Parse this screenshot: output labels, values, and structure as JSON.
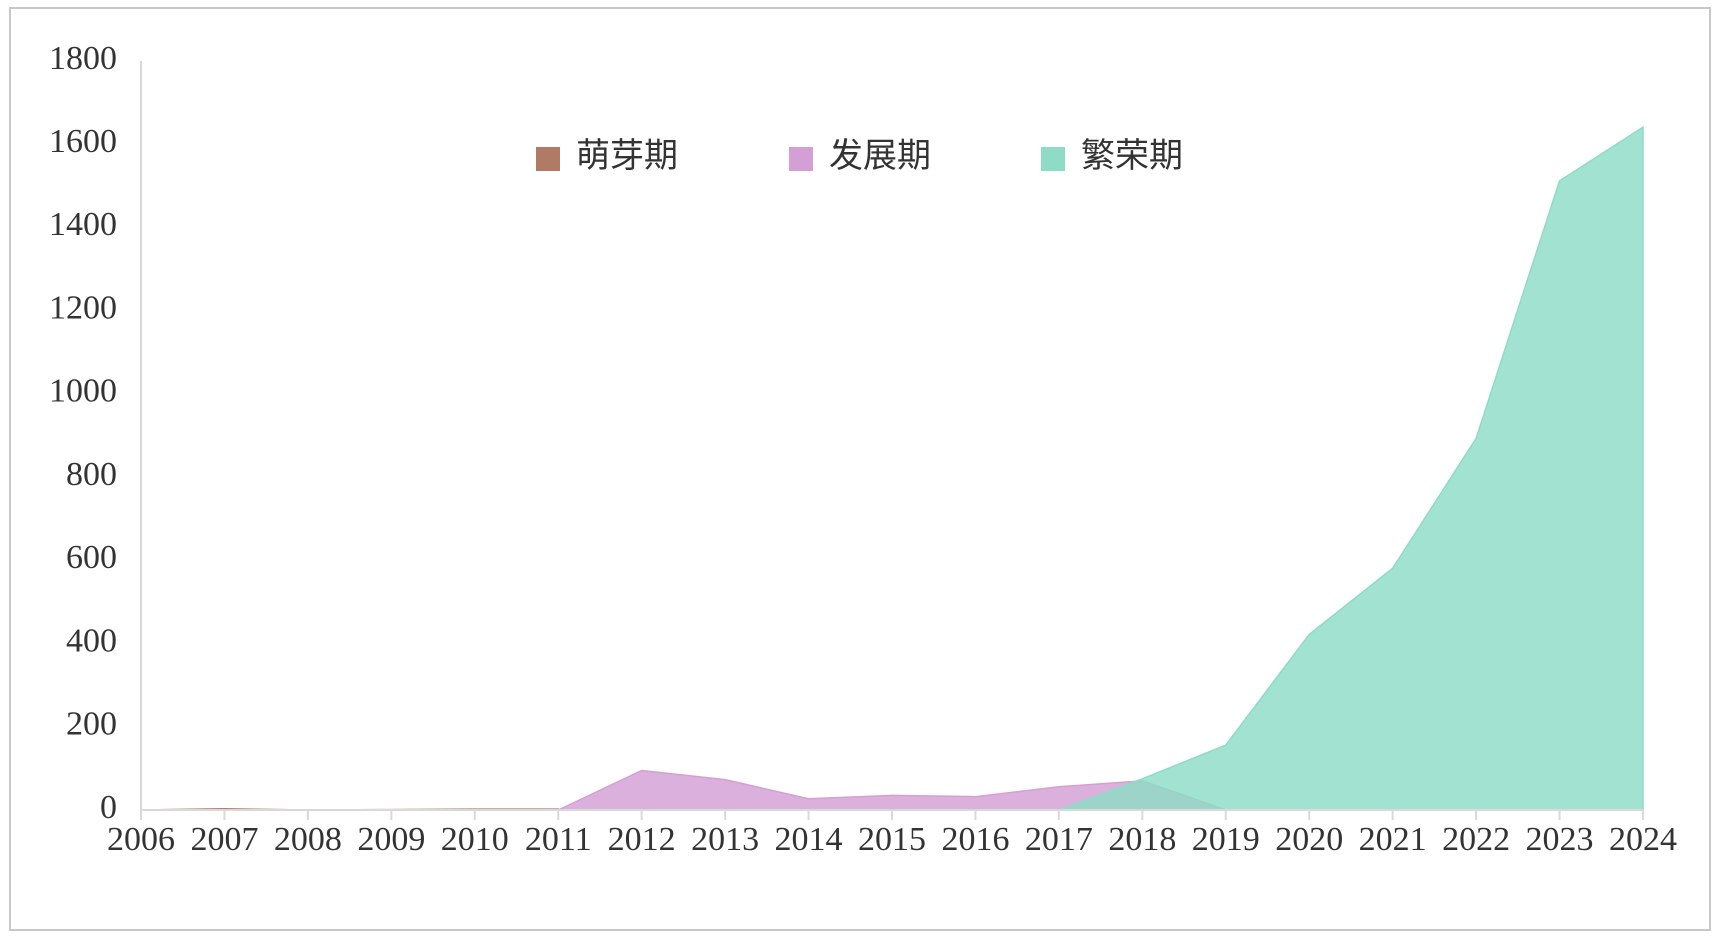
{
  "chart_data": {
    "type": "area",
    "categories": [
      "2006",
      "2007",
      "2008",
      "2009",
      "2010",
      "2011",
      "2012",
      "2013",
      "2014",
      "2015",
      "2016",
      "2017",
      "2018",
      "2019",
      "2020",
      "2021",
      "2022",
      "2023",
      "2024"
    ],
    "series": [
      {
        "name": "萌芽期",
        "color": "#b07a64",
        "values": [
          0,
          3,
          0,
          1,
          2,
          2,
          null,
          null,
          null,
          null,
          null,
          null,
          null,
          null,
          null,
          null,
          null,
          null,
          null
        ]
      },
      {
        "name": "发展期",
        "color": "#d49fd4",
        "values": [
          null,
          null,
          null,
          null,
          null,
          0,
          95,
          73,
          27,
          35,
          32,
          56,
          70,
          0,
          null,
          null,
          null,
          null,
          null
        ]
      },
      {
        "name": "繁荣期",
        "color": "#8edcc6",
        "values": [
          null,
          null,
          null,
          null,
          null,
          null,
          null,
          null,
          null,
          null,
          null,
          0,
          75,
          156,
          422,
          581,
          893,
          1512,
          1641
        ]
      }
    ],
    "ylim": [
      0,
      1800
    ],
    "yticks": [
      0,
      200,
      400,
      600,
      800,
      1000,
      1200,
      1400,
      1600,
      1800
    ],
    "grid": false,
    "legend": "top"
  }
}
